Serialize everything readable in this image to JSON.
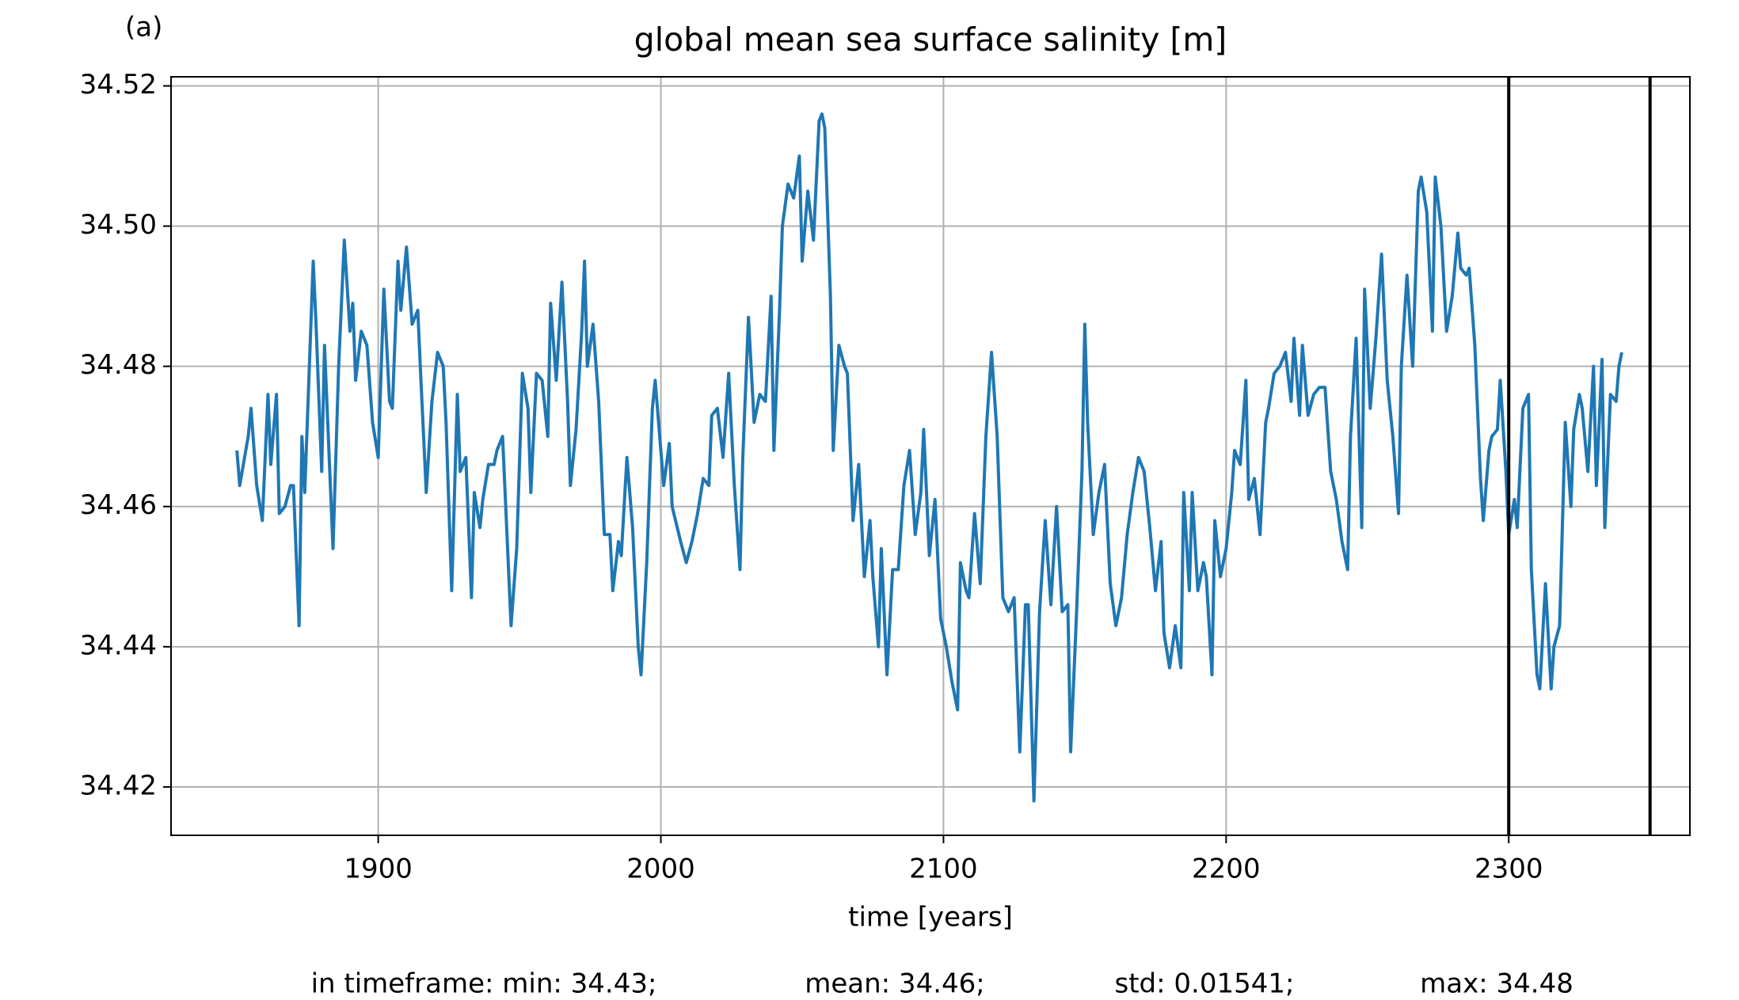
{
  "chart_data": {
    "type": "line",
    "panel_label": "(a)",
    "title": "global mean sea surface salinity [m]",
    "x_label": "time [years]",
    "stats": [
      "in timeframe: min: 34.43;",
      "mean: 34.46;",
      "std: 0.01541;",
      "max: 34.48"
    ],
    "color": "#1f77b4",
    "grid": true,
    "xlim": [
      1826.7,
      2364.1
    ],
    "ylim": [
      34.4131,
      34.5213
    ],
    "xticks": [
      1900,
      2000,
      2100,
      2200,
      2300
    ],
    "yticks": [
      34.52,
      {
        "value": 34.5,
        "label": "34.50"
      },
      34.48,
      34.46,
      34.44,
      34.42
    ],
    "vlines": [
      2300,
      2350
    ],
    "x": [
      1850,
      1851,
      1854,
      1855,
      1857,
      1859,
      1861,
      1862,
      1864,
      1865,
      1867,
      1869,
      1870,
      1872,
      1873,
      1874,
      1877,
      1878,
      1880,
      1881,
      1884,
      1886,
      1888,
      1890,
      1891,
      1892,
      1894,
      1896,
      1898,
      1900,
      1902,
      1904,
      1905,
      1907,
      1908,
      1910,
      1912,
      1914,
      1915,
      1917,
      1919,
      1921,
      1923,
      1924,
      1926,
      1928,
      1929,
      1931,
      1933,
      1934,
      1936,
      1937,
      1939,
      1941,
      1942,
      1944,
      1947,
      1949,
      1951,
      1953,
      1954,
      1956,
      1958,
      1960,
      1961,
      1963,
      1965,
      1967,
      1968,
      1970,
      1972,
      1973,
      1974,
      1976,
      1978,
      1980,
      1982,
      1983,
      1985,
      1986,
      1988,
      1990,
      1992,
      1993,
      1995,
      1997,
      1998,
      2001,
      2003,
      2004,
      2007,
      2009,
      2011,
      2013,
      2015,
      2017,
      2018,
      2020,
      2022,
      2024,
      2026,
      2028,
      2029,
      2031,
      2033,
      2035,
      2037,
      2039,
      2040,
      2042,
      2043,
      2045,
      2047,
      2049,
      2050,
      2052,
      2054,
      2056,
      2057,
      2058,
      2060,
      2061,
      2063,
      2065,
      2066,
      2068,
      2070,
      2072,
      2074,
      2075,
      2077,
      2078,
      2080,
      2082,
      2084,
      2086,
      2088,
      2090,
      2092,
      2093,
      2095,
      2097,
      2099,
      2101,
      2103,
      2105,
      2106,
      2108,
      2109,
      2111,
      2113,
      2115,
      2117,
      2119,
      2121,
      2123,
      2125,
      2127,
      2129,
      2130,
      2132,
      2134,
      2136,
      2138,
      2140,
      2142,
      2144,
      2145,
      2147,
      2149,
      2150,
      2151,
      2153,
      2155,
      2157,
      2159,
      2161,
      2163,
      2165,
      2167,
      2169,
      2171,
      2173,
      2175,
      2177,
      2178,
      2180,
      2182,
      2184,
      2185,
      2187,
      2188,
      2190,
      2192,
      2193,
      2195,
      2196,
      2198,
      2200,
      2202,
      2203,
      2205,
      2207,
      2208,
      2210,
      2212,
      2214,
      2215,
      2217,
      2219,
      2221,
      2223,
      2224,
      2226,
      2227,
      2229,
      2231,
      2233,
      2235,
      2237,
      2239,
      2241,
      2243,
      2244,
      2246,
      2248,
      2249,
      2251,
      2253,
      2255,
      2257,
      2259,
      2261,
      2262,
      2264,
      2266,
      2268,
      2269,
      2271,
      2273,
      2274,
      2276,
      2278,
      2280,
      2282,
      2283,
      2285,
      2286,
      2288,
      2290,
      2291,
      2293,
      2294,
      2296,
      2297,
      2299,
      2300,
      2302,
      2303,
      2305,
      2307,
      2308,
      2310,
      2311,
      2313,
      2315,
      2316,
      2318,
      2320,
      2322,
      2323,
      2325,
      2326,
      2328,
      2330,
      2331,
      2333,
      2334,
      2336,
      2338,
      2339,
      2340
    ],
    "values": [
      34.468,
      34.463,
      34.47,
      34.474,
      34.463,
      34.458,
      34.476,
      34.466,
      34.476,
      34.459,
      34.46,
      34.463,
      34.463,
      34.443,
      34.47,
      34.462,
      34.495,
      34.486,
      34.465,
      34.483,
      34.454,
      34.48,
      34.498,
      34.485,
      34.489,
      34.478,
      34.485,
      34.483,
      34.472,
      34.467,
      34.491,
      34.475,
      34.474,
      34.495,
      34.488,
      34.497,
      34.486,
      34.488,
      34.479,
      34.462,
      34.475,
      34.482,
      34.48,
      34.472,
      34.448,
      34.476,
      34.465,
      34.467,
      34.447,
      34.462,
      34.457,
      34.461,
      34.466,
      34.466,
      34.468,
      34.47,
      34.443,
      34.454,
      34.479,
      34.474,
      34.462,
      34.479,
      34.478,
      34.47,
      34.489,
      34.478,
      34.492,
      34.475,
      34.463,
      34.471,
      34.485,
      34.495,
      34.48,
      34.486,
      34.475,
      34.456,
      34.456,
      34.448,
      34.455,
      34.453,
      34.467,
      34.457,
      34.44,
      34.436,
      34.452,
      34.474,
      34.478,
      34.463,
      34.469,
      34.46,
      34.455,
      34.452,
      34.455,
      34.459,
      34.464,
      34.463,
      34.473,
      34.474,
      34.467,
      34.479,
      34.463,
      34.451,
      34.467,
      34.487,
      34.472,
      34.476,
      34.475,
      34.49,
      34.468,
      34.488,
      34.5,
      34.506,
      34.504,
      34.51,
      34.495,
      34.505,
      34.498,
      34.515,
      34.516,
      34.514,
      34.49,
      34.468,
      34.483,
      34.48,
      34.479,
      34.458,
      34.466,
      34.45,
      34.458,
      34.45,
      34.44,
      34.454,
      34.436,
      34.451,
      34.451,
      34.463,
      34.468,
      34.456,
      34.462,
      34.471,
      34.453,
      34.461,
      34.444,
      34.44,
      34.435,
      34.431,
      34.452,
      34.448,
      34.447,
      34.459,
      34.449,
      34.47,
      34.482,
      34.47,
      34.447,
      34.445,
      34.447,
      34.425,
      34.446,
      34.446,
      34.418,
      34.445,
      34.458,
      34.446,
      34.46,
      34.445,
      34.446,
      34.425,
      34.444,
      34.465,
      34.486,
      34.472,
      34.456,
      34.462,
      34.466,
      34.449,
      34.443,
      34.447,
      34.456,
      34.462,
      34.467,
      34.465,
      34.457,
      34.448,
      34.455,
      34.442,
      34.437,
      34.443,
      34.437,
      34.462,
      34.448,
      34.462,
      34.448,
      34.452,
      34.45,
      34.436,
      34.458,
      34.45,
      34.454,
      34.462,
      34.468,
      34.466,
      34.478,
      34.461,
      34.464,
      34.456,
      34.472,
      34.474,
      34.479,
      34.48,
      34.482,
      34.475,
      34.484,
      34.473,
      34.483,
      34.473,
      34.476,
      34.477,
      34.477,
      34.465,
      34.461,
      34.455,
      34.451,
      34.47,
      34.484,
      34.457,
      34.491,
      34.474,
      34.484,
      34.496,
      34.478,
      34.47,
      34.459,
      34.48,
      34.493,
      34.48,
      34.505,
      34.507,
      34.502,
      34.485,
      34.507,
      34.5,
      34.485,
      34.49,
      34.499,
      34.494,
      34.493,
      34.494,
      34.483,
      34.464,
      34.458,
      34.468,
      34.47,
      34.471,
      34.478,
      34.465,
      34.456,
      34.461,
      34.457,
      34.474,
      34.476,
      34.451,
      34.436,
      34.434,
      34.449,
      34.434,
      34.44,
      34.443,
      34.472,
      34.46,
      34.471,
      34.476,
      34.474,
      34.465,
      34.48,
      34.463,
      34.481,
      34.457,
      34.476,
      34.475,
      34.48,
      34.482
    ]
  }
}
